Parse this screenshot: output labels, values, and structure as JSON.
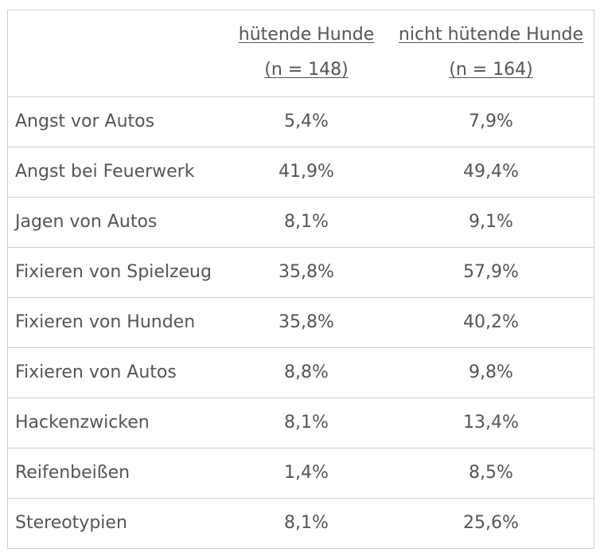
{
  "table": {
    "columns": [
      {
        "title": "hütende Hunde",
        "n": "(n = 148)"
      },
      {
        "title": "nicht hütende Hunde",
        "n": "(n = 164)"
      }
    ],
    "rows": [
      {
        "label": "Angst vor Autos",
        "values": [
          "5,4%",
          "7,9%"
        ]
      },
      {
        "label": "Angst bei Feuerwerk",
        "values": [
          "41,9%",
          "49,4%"
        ]
      },
      {
        "label": "Jagen von Autos",
        "values": [
          "8,1%",
          "9,1%"
        ]
      },
      {
        "label": "Fixieren von Spielzeug",
        "values": [
          "35,8%",
          "57,9%"
        ]
      },
      {
        "label": "Fixieren von Hunden",
        "values": [
          "35,8%",
          "40,2%"
        ]
      },
      {
        "label": "Fixieren von Autos",
        "values": [
          "8,8%",
          "9,8%"
        ]
      },
      {
        "label": "Hackenzwicken",
        "values": [
          "8,1%",
          "13,4%"
        ]
      },
      {
        "label": "Reifenbeißen",
        "values": [
          "1,4%",
          "8,5%"
        ]
      },
      {
        "label": "Stereotypien",
        "values": [
          "8,1%",
          "25,6%"
        ]
      }
    ]
  },
  "colors": {
    "text": "#555555",
    "border": "#cfcfcf",
    "background": "#ffffff"
  }
}
